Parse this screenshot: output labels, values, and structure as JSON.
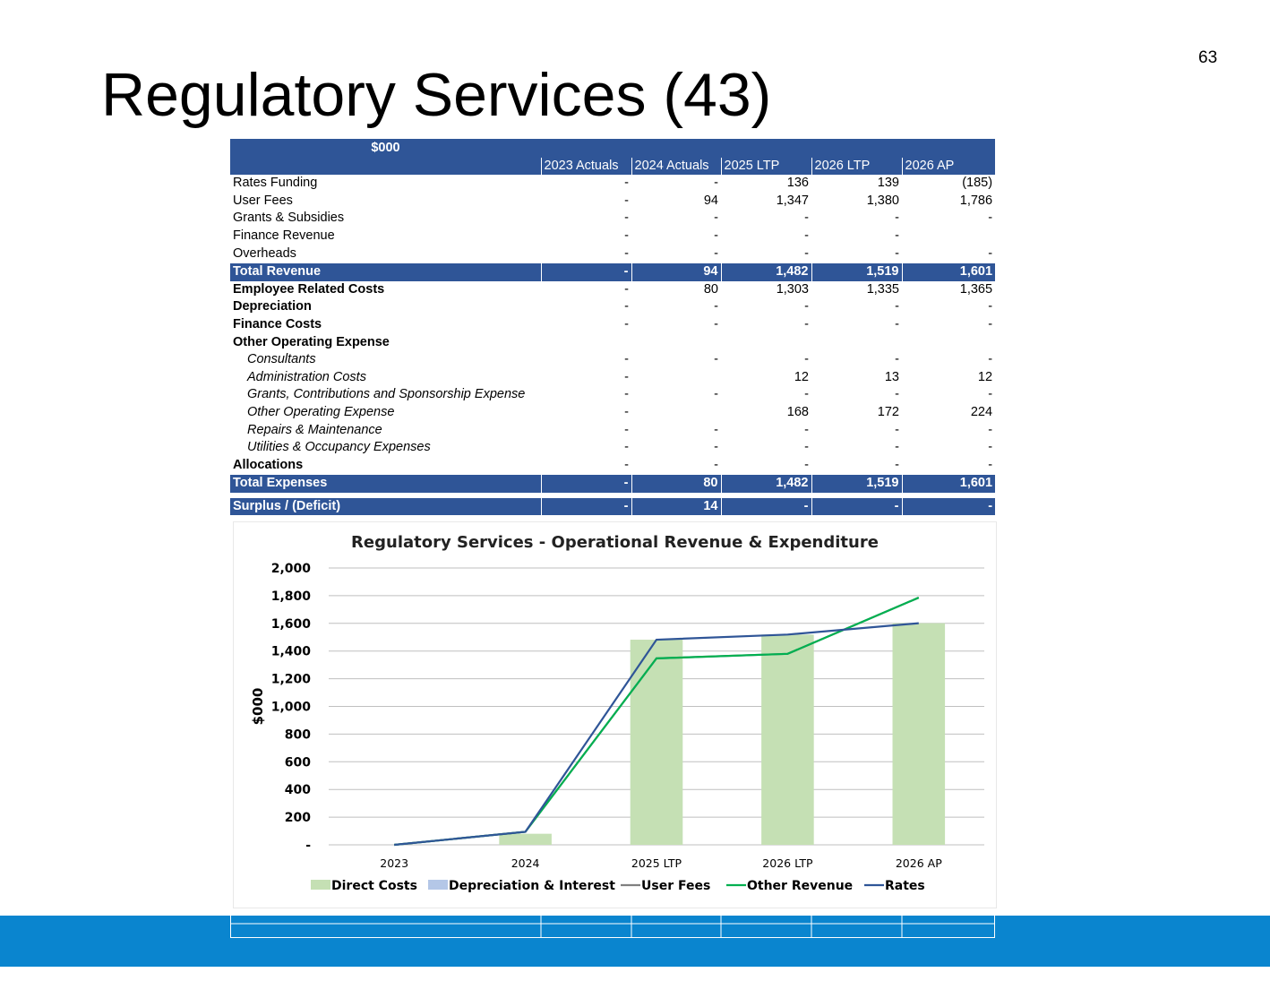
{
  "page_number": "63",
  "title": "Regulatory Services (43)",
  "table": {
    "unit_label": "$000",
    "columns": [
      "2023 Actuals",
      "2024 Actuals",
      "2025 LTP",
      "2026 LTP",
      "2026 AP"
    ],
    "rows": [
      {
        "label": "Rates Funding",
        "style": "normal",
        "values": [
          "-",
          "-",
          "136",
          "139",
          "(185)"
        ]
      },
      {
        "label": "User Fees",
        "style": "normal",
        "values": [
          "-",
          "94",
          "1,347",
          "1,380",
          "1,786"
        ]
      },
      {
        "label": "Grants & Subsidies",
        "style": "normal",
        "values": [
          "-",
          "-",
          "-",
          "-",
          "-"
        ]
      },
      {
        "label": "Finance Revenue",
        "style": "normal",
        "values": [
          "-",
          "-",
          "-",
          "-",
          ""
        ]
      },
      {
        "label": "Overheads",
        "style": "normal",
        "values": [
          "-",
          "-",
          "-",
          "-",
          "-"
        ]
      },
      {
        "label": "Total Revenue",
        "style": "total",
        "values": [
          "-",
          "94",
          "1,482",
          "1,519",
          "1,601"
        ]
      },
      {
        "label": "Employee Related Costs",
        "style": "bold",
        "values": [
          "-",
          "80",
          "1,303",
          "1,335",
          "1,365"
        ]
      },
      {
        "label": "Depreciation",
        "style": "bold",
        "values": [
          "-",
          "-",
          "-",
          "-",
          "-"
        ]
      },
      {
        "label": "Finance Costs",
        "style": "bold",
        "values": [
          "-",
          "-",
          "-",
          "-",
          "-"
        ]
      },
      {
        "label": "Other Operating  Expense",
        "style": "bold",
        "values": [
          "",
          "",
          "",
          "",
          ""
        ]
      },
      {
        "label": "Consultants",
        "style": "indent",
        "values": [
          "-",
          "-",
          "-",
          "-",
          "-"
        ]
      },
      {
        "label": "Administration Costs",
        "style": "indent",
        "values": [
          "-",
          "",
          "12",
          "13",
          "12"
        ]
      },
      {
        "label": "Grants, Contributions and Sponsorship Expense",
        "style": "indent",
        "values": [
          "-",
          "-",
          "-",
          "-",
          "-"
        ]
      },
      {
        "label": "Other Operating Expense",
        "style": "indent",
        "values": [
          "-",
          "",
          "168",
          "172",
          "224"
        ]
      },
      {
        "label": "Repairs & Maintenance",
        "style": "indent",
        "values": [
          "-",
          "-",
          "-",
          "-",
          "-"
        ]
      },
      {
        "label": "Utilities & Occupancy Expenses",
        "style": "indent",
        "values": [
          "-",
          "-",
          "-",
          "-",
          "-"
        ]
      },
      {
        "label": "Allocations",
        "style": "bold",
        "values": [
          "-",
          "-",
          "-",
          "-",
          "-"
        ]
      },
      {
        "label": "Total Expenses",
        "style": "total",
        "values": [
          "-",
          "80",
          "1,482",
          "1,519",
          "1,601"
        ]
      },
      {
        "label": "",
        "style": "spacer",
        "values": [
          "",
          "",
          "",
          "",
          ""
        ]
      },
      {
        "label": "Surplus / (Deficit)",
        "style": "total",
        "values": [
          "-",
          "14",
          "-",
          "-",
          "-"
        ]
      }
    ]
  },
  "chart_data": {
    "type": "bar",
    "title": "Regulatory Services - Operational Revenue & Expenditure",
    "xlabel": "",
    "ylabel": "$000",
    "categories": [
      "2023",
      "2024",
      "2025 LTP",
      "2026 LTP",
      "2026 AP"
    ],
    "ylim": [
      0,
      2000
    ],
    "yticks": [
      0,
      200,
      400,
      600,
      800,
      1000,
      1200,
      1400,
      1600,
      1800,
      2000
    ],
    "ytick_labels": [
      "-",
      "200",
      "400",
      "600",
      "800",
      "1,000",
      "1,200",
      "1,400",
      "1,600",
      "1,800",
      "2,000"
    ],
    "grid": true,
    "legend_position": "bottom",
    "series": [
      {
        "name": "Direct Costs",
        "kind": "bar",
        "color": "#c5e0b4",
        "values": [
          0,
          80,
          1482,
          1519,
          1601
        ]
      },
      {
        "name": "Depreciation & Interest",
        "kind": "bar",
        "color": "#b4c7e7",
        "values": [
          0,
          0,
          0,
          0,
          0
        ]
      },
      {
        "name": "User Fees",
        "kind": "line",
        "color": "#808080",
        "values": [
          0,
          94,
          1347,
          1380,
          1786
        ]
      },
      {
        "name": "Other Revenue",
        "kind": "line",
        "color": "#00b050",
        "values": [
          0,
          94,
          1347,
          1380,
          1786
        ]
      },
      {
        "name": "Rates",
        "kind": "line",
        "color": "#2f5597",
        "values": [
          0,
          94,
          1482,
          1519,
          1601
        ]
      }
    ]
  },
  "colors": {
    "header_blue": "#2f5597",
    "footer_band": "#0a85cf"
  }
}
